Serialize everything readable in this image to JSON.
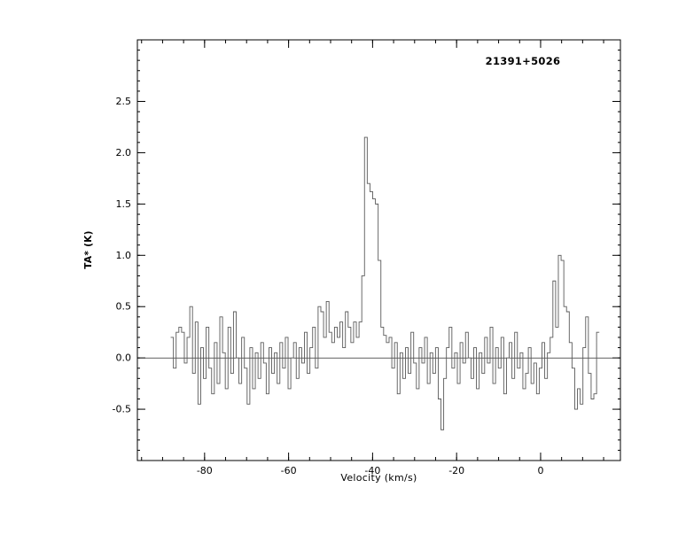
{
  "chart_data": {
    "type": "line",
    "subtype": "histogram-step-spectrum",
    "title": "21391+5026",
    "xlabel": "Velocity (km/s)",
    "ylabel": "TA* (K)",
    "xlim": [
      -96,
      19
    ],
    "ylim": [
      -1.0,
      3.1
    ],
    "xticks": [
      -80,
      -60,
      -40,
      -20,
      0
    ],
    "yticks": [
      -0.5,
      0.0,
      0.5,
      1.0,
      1.5,
      2.0,
      2.5
    ],
    "x_minor_step": 5,
    "y_minor_step": 0.1,
    "baseline_y": 0.0,
    "grid": false,
    "legend": "none",
    "x_units": "km/s",
    "y_units": "K",
    "x_start": -87.75,
    "x_step": 0.65,
    "peak_velocity": -41.6,
    "peak_value": 2.15,
    "values": [
      0.2,
      -0.1,
      0.25,
      0.3,
      0.25,
      -0.05,
      0.2,
      0.5,
      -0.15,
      0.35,
      -0.45,
      0.1,
      -0.2,
      0.3,
      -0.1,
      -0.35,
      0.15,
      -0.25,
      0.4,
      0.05,
      -0.3,
      0.3,
      -0.15,
      0.45,
      0.0,
      -0.25,
      0.2,
      -0.1,
      -0.45,
      0.1,
      -0.3,
      0.05,
      -0.2,
      0.15,
      -0.05,
      -0.35,
      0.1,
      -0.15,
      0.05,
      -0.25,
      0.15,
      -0.1,
      0.2,
      -0.3,
      0.0,
      0.15,
      -0.2,
      0.1,
      -0.05,
      0.25,
      -0.15,
      0.1,
      0.3,
      -0.1,
      0.5,
      0.45,
      0.2,
      0.55,
      0.25,
      0.15,
      0.3,
      0.2,
      0.35,
      0.1,
      0.45,
      0.3,
      0.15,
      0.35,
      0.2,
      0.35,
      0.8,
      2.15,
      1.7,
      1.62,
      1.55,
      1.5,
      0.95,
      0.3,
      0.22,
      0.15,
      0.2,
      -0.1,
      0.15,
      -0.35,
      0.05,
      -0.2,
      0.1,
      -0.15,
      0.25,
      -0.05,
      -0.3,
      0.1,
      -0.05,
      0.2,
      -0.25,
      0.05,
      -0.15,
      0.1,
      -0.4,
      -0.7,
      -0.2,
      0.1,
      0.3,
      -0.1,
      0.05,
      -0.25,
      0.15,
      -0.05,
      0.25,
      0.0,
      -0.2,
      0.1,
      -0.3,
      0.05,
      -0.15,
      0.2,
      -0.05,
      0.3,
      -0.25,
      0.1,
      -0.1,
      0.2,
      -0.35,
      0.0,
      0.15,
      -0.2,
      0.25,
      -0.1,
      0.05,
      -0.3,
      -0.15,
      0.1,
      -0.25,
      -0.05,
      -0.35,
      -0.1,
      0.15,
      -0.2,
      0.05,
      0.2,
      0.75,
      0.3,
      1.0,
      0.95,
      0.5,
      0.45,
      0.15,
      -0.1,
      -0.5,
      -0.3,
      -0.45,
      0.1,
      0.4,
      -0.15,
      -0.4,
      -0.35,
      0.25
    ],
    "line_color": "#5a5a5a",
    "axis_color": "#000000",
    "background_color": "#ffffff"
  }
}
